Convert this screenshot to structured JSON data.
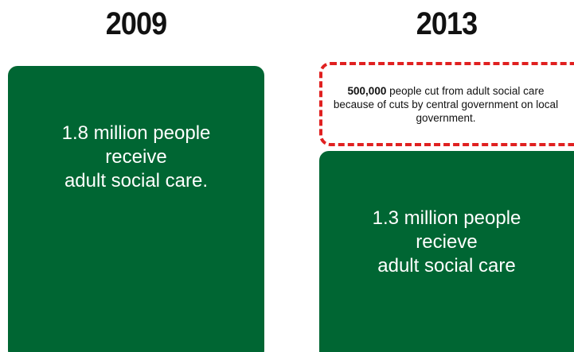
{
  "left": {
    "year": "2009",
    "box_lines": [
      "1.8 million people",
      "receive",
      "adult social care."
    ]
  },
  "right": {
    "year": "2013",
    "callout_highlight": "500,000",
    "callout_rest": " people cut from adult social care because of cuts by central government on local government.",
    "box_lines": [
      "1.3 million people",
      "recieve",
      "adult social care"
    ]
  },
  "colors": {
    "box_green": "#006633",
    "callout_border": "#e02020"
  }
}
